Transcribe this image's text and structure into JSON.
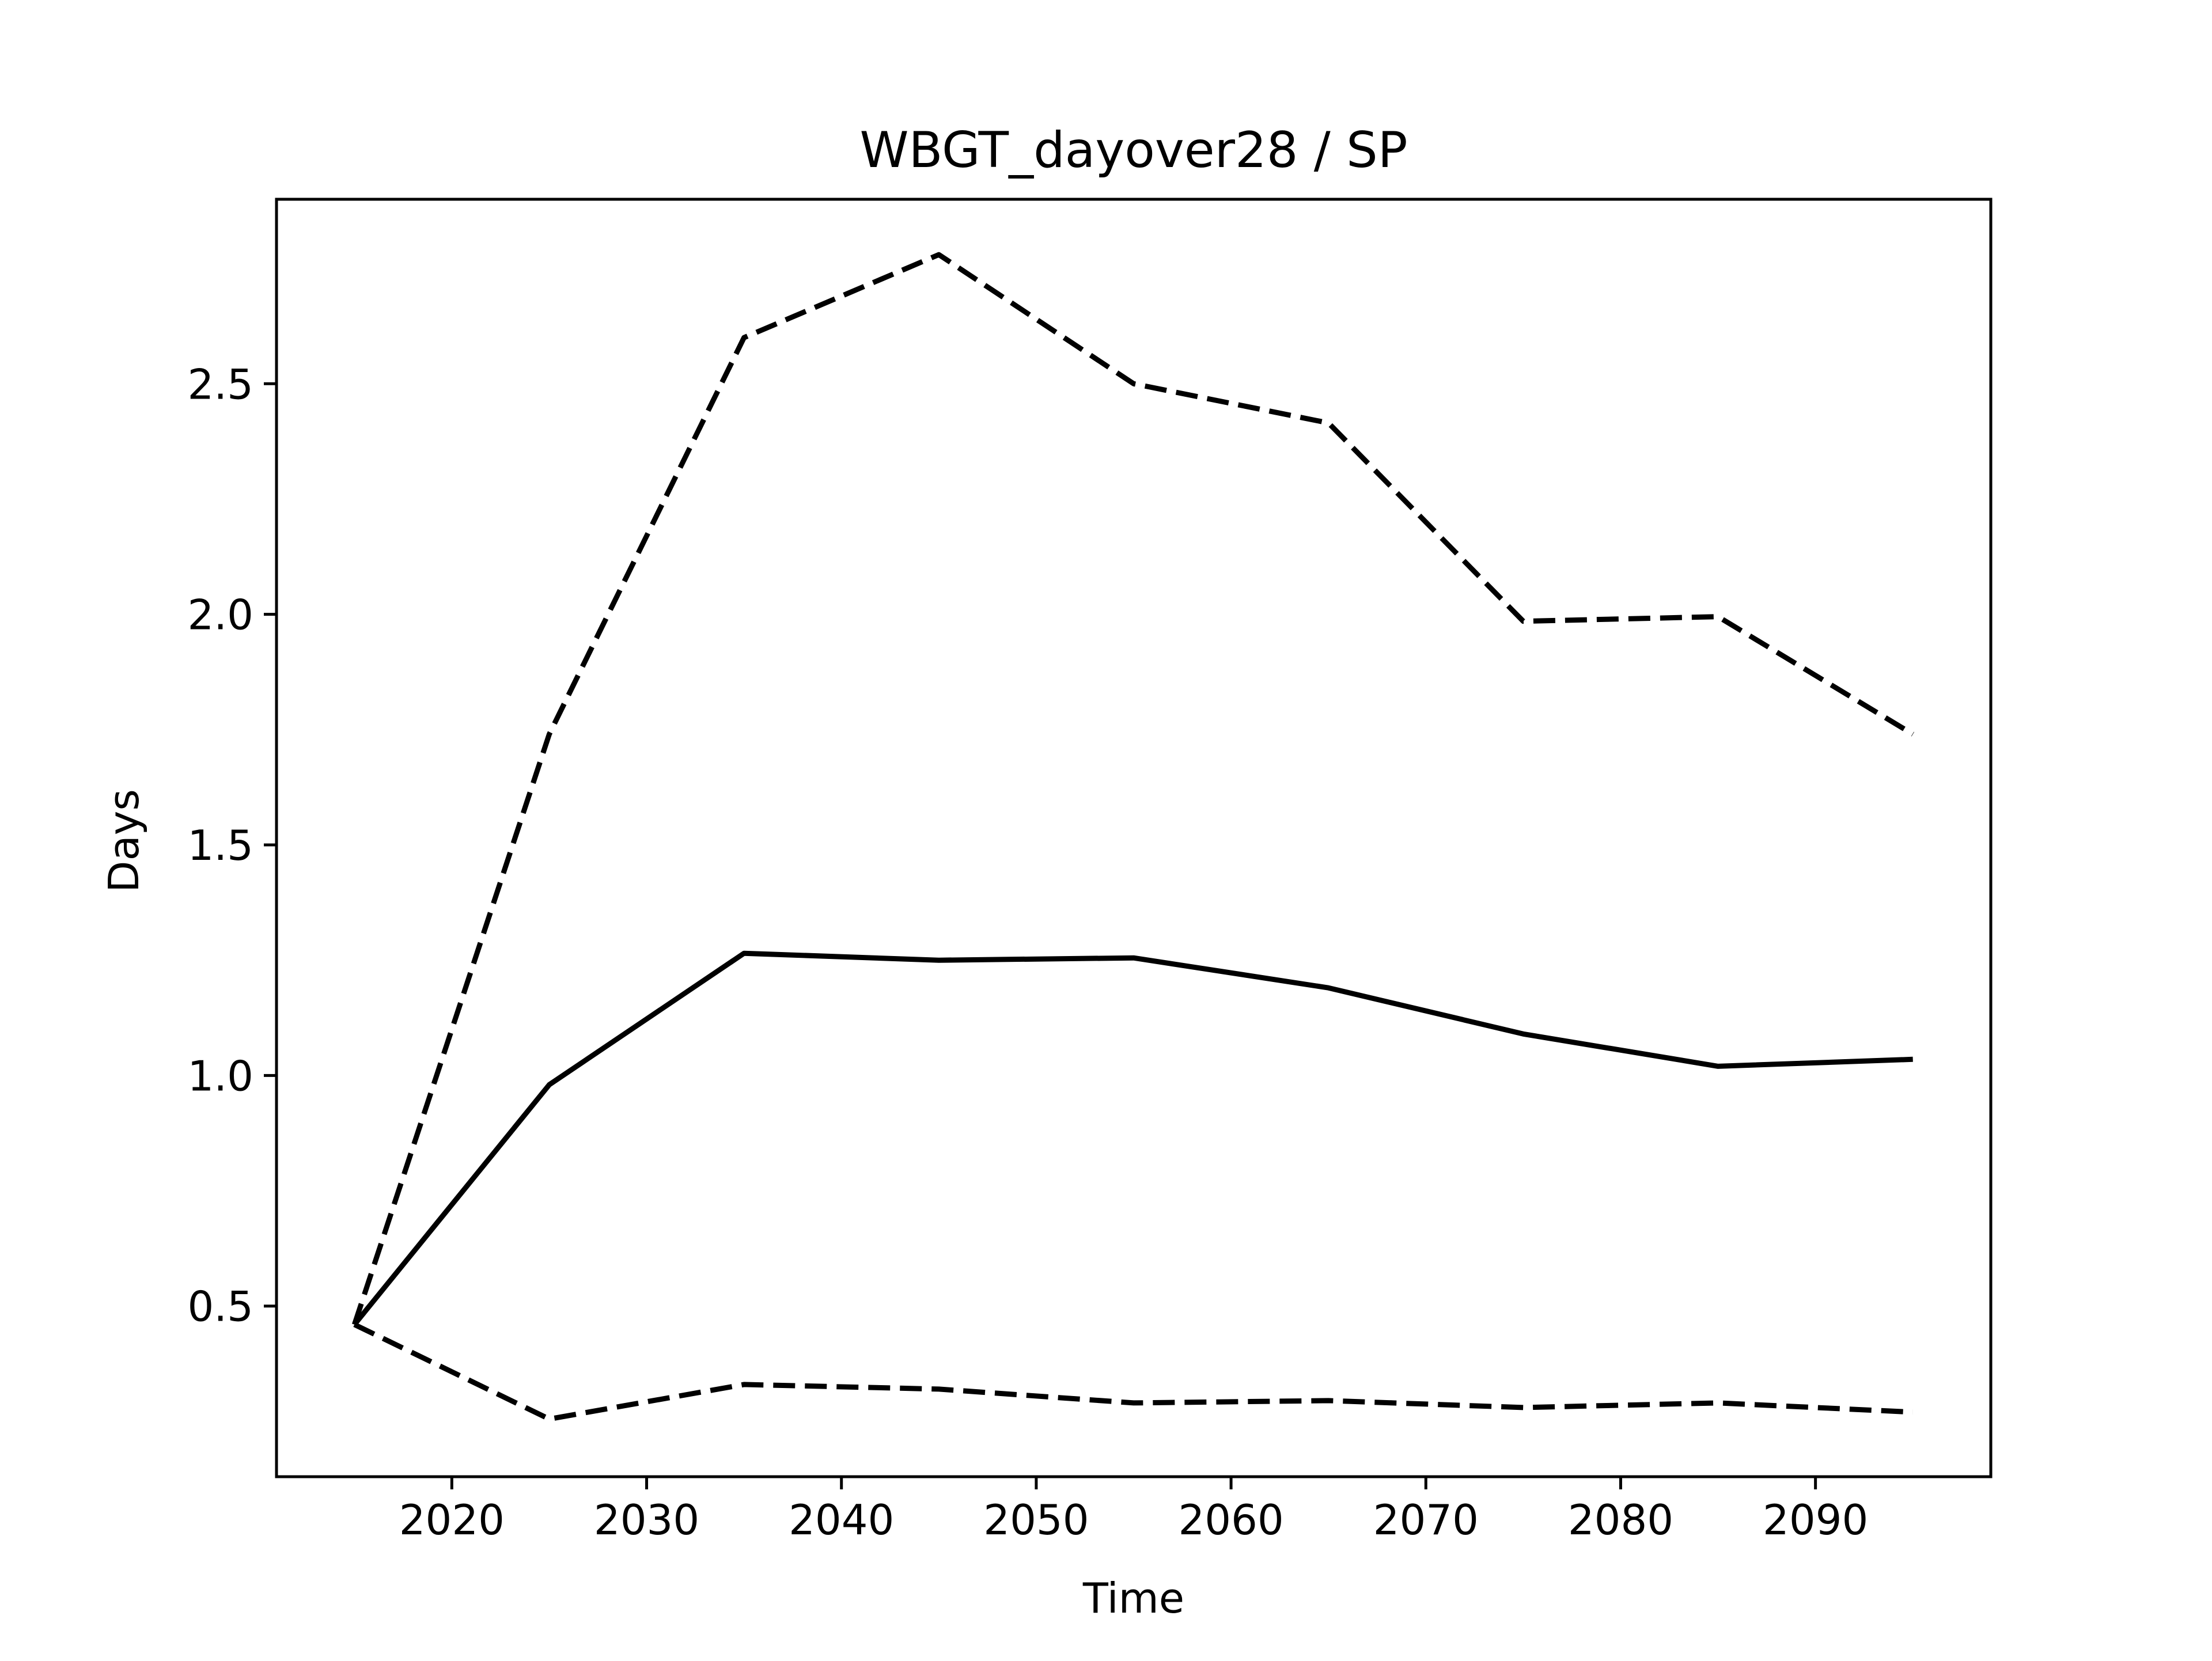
{
  "chart_data": {
    "type": "line",
    "title": "WBGT_dayover28 / SP",
    "xlabel": "Time",
    "ylabel": "Days",
    "xlim": [
      2011,
      2099
    ],
    "ylim": [
      0.13,
      2.9
    ],
    "x_ticks": [
      2020,
      2030,
      2040,
      2050,
      2060,
      2070,
      2080,
      2090
    ],
    "x_tick_labels": [
      "2020",
      "2030",
      "2040",
      "2050",
      "2060",
      "2070",
      "2080",
      "2090"
    ],
    "y_ticks": [
      0.5,
      1.0,
      1.5,
      2.0,
      2.5
    ],
    "y_tick_labels": [
      "0.5",
      "1.0",
      "1.5",
      "2.0",
      "2.5"
    ],
    "grid": false,
    "legend": false,
    "x": [
      2015,
      2025,
      2035,
      2045,
      2055,
      2065,
      2075,
      2085,
      2095
    ],
    "series": [
      {
        "style": "solid",
        "color": "#000000",
        "values": [
          0.46,
          0.98,
          1.265,
          1.25,
          1.255,
          1.19,
          1.09,
          1.02,
          1.035
        ]
      },
      {
        "style": "dashed",
        "color": "#000000",
        "values": [
          0.46,
          1.74,
          2.6,
          2.78,
          2.5,
          2.415,
          1.985,
          1.995,
          1.74
        ]
      },
      {
        "style": "dashed",
        "color": "#000000",
        "values": [
          0.46,
          0.255,
          0.33,
          0.32,
          0.29,
          0.295,
          0.28,
          0.29,
          0.27
        ]
      }
    ]
  }
}
